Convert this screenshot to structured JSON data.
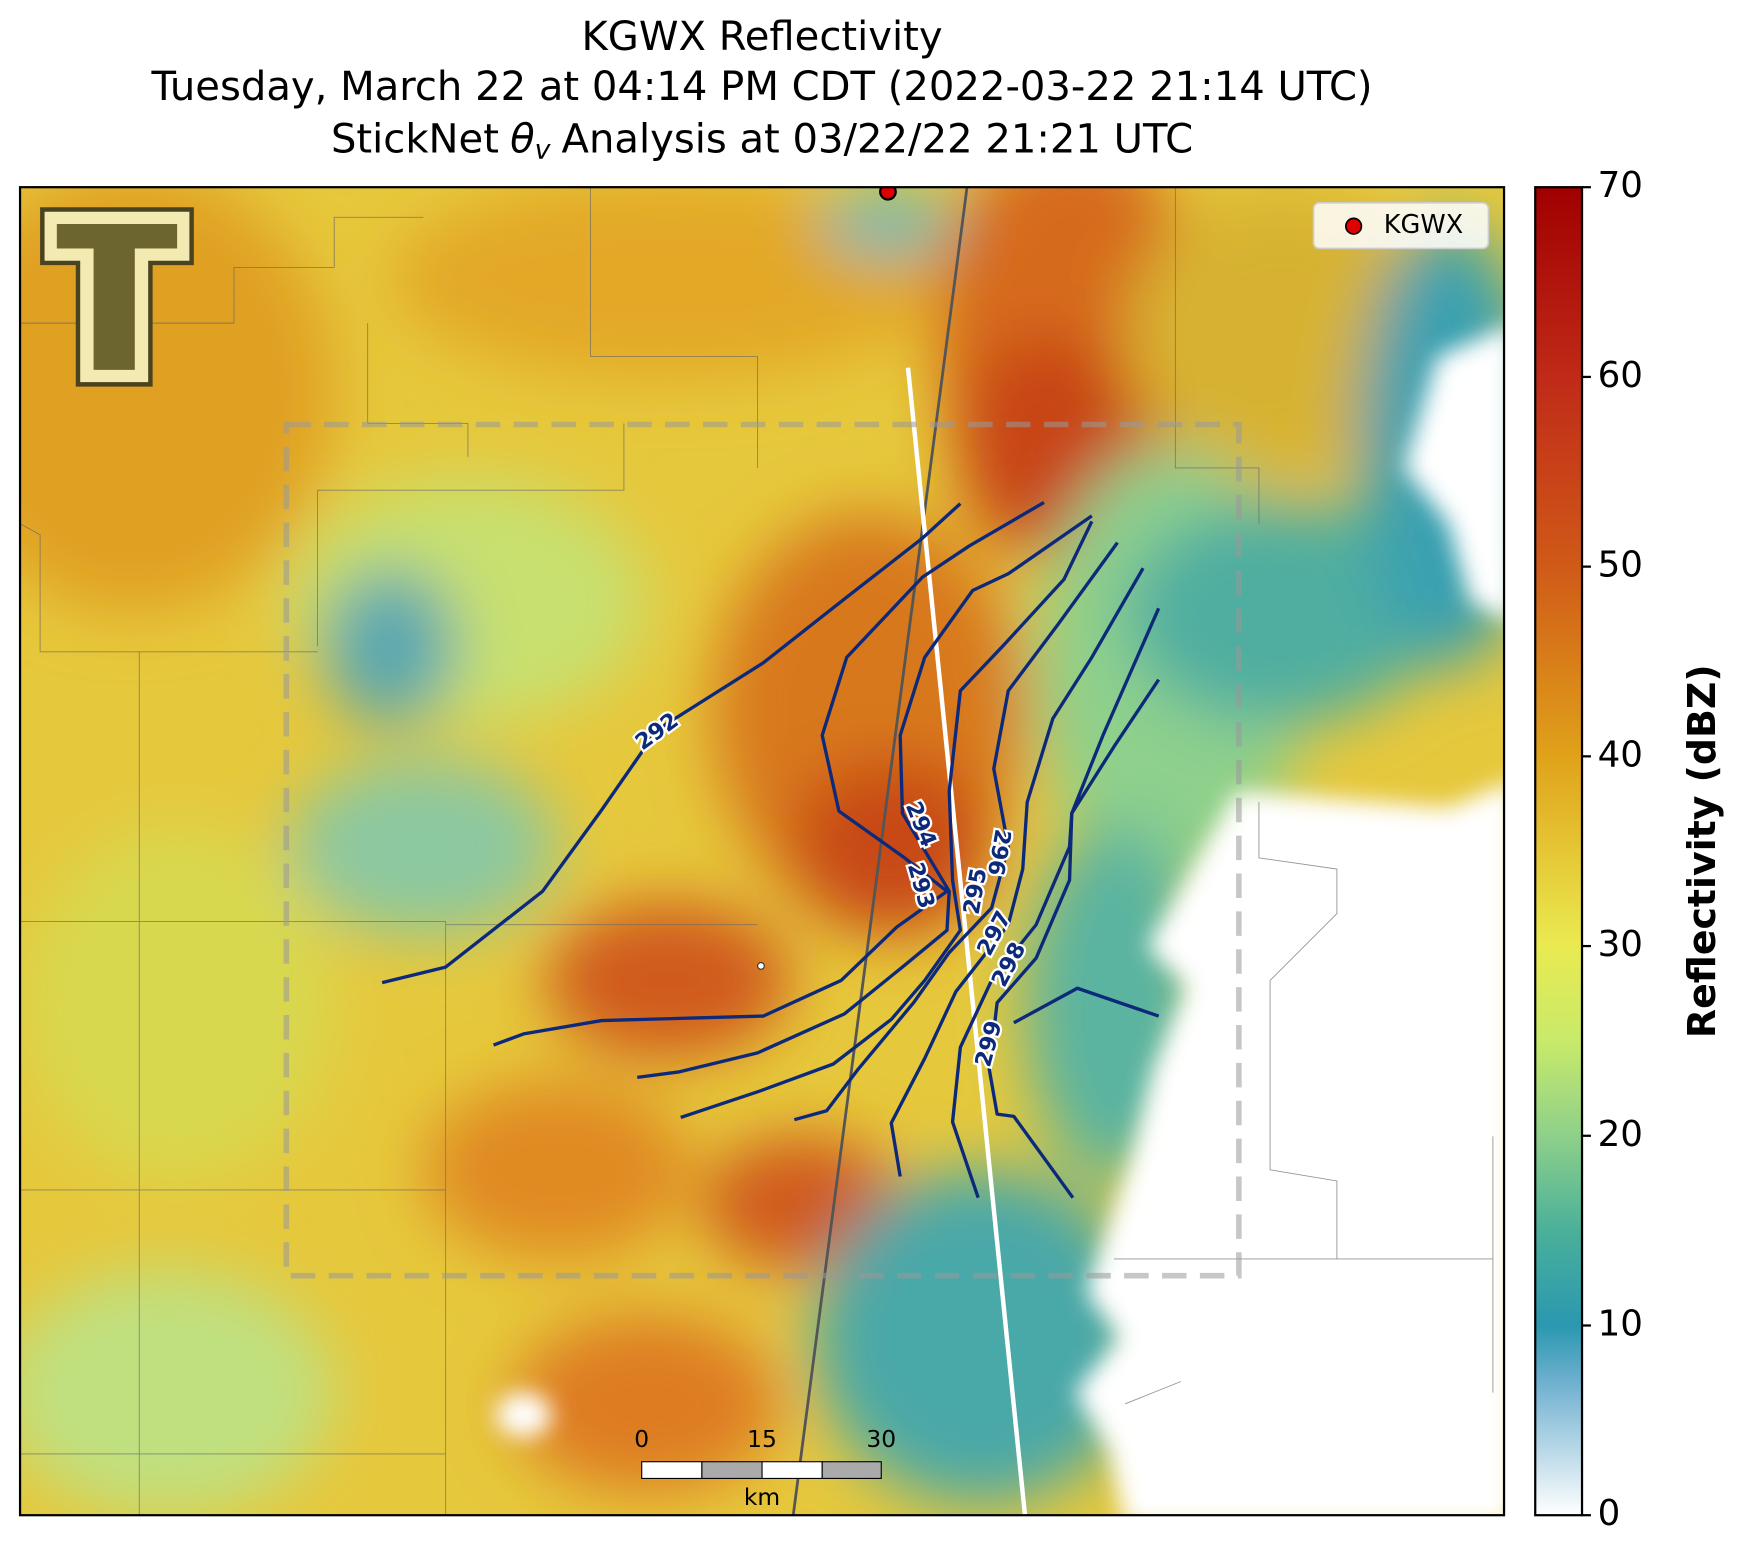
{
  "header": {
    "title": "KGWX Reflectivity",
    "subtitle": "Tuesday, March 22 at 04:14 PM CDT (2022-03-22 21:14 UTC)",
    "analysis": {
      "prefix": "StickNet",
      "symbol": "θ",
      "subscript": "v",
      "suffix": "Analysis at 03/22/22 21:21 UTC"
    }
  },
  "map": {
    "legend": "KGWX",
    "contour_levels": [
      292,
      293,
      294,
      295,
      296,
      297,
      298,
      299
    ]
  },
  "colorbar": {
    "label": "Reflectivity (dBZ)",
    "lim": [
      0,
      70
    ],
    "ticks": [
      0,
      10,
      20,
      30,
      40,
      50,
      60,
      70
    ]
  },
  "scale_bar": {
    "ticks": [
      0,
      15,
      30
    ],
    "unit": "km"
  }
}
